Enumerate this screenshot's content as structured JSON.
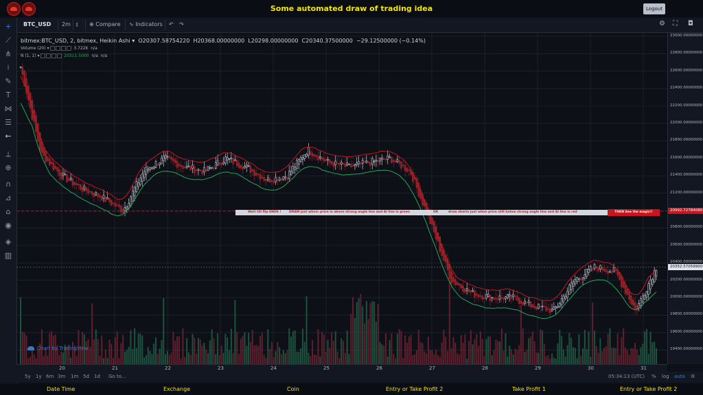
{
  "app_title": "Some automated draw of trading idea",
  "logout_label": "Logout",
  "toolbar": {
    "symbol": "BTC_USD",
    "interval": "2m",
    "compare_label": "Compare",
    "indicators_label": "Indicators"
  },
  "legend": {
    "main": "bitmex:BTC_USD, 2, bitmex, Heikin Ashi",
    "open": "O20307.58754220",
    "high": "H20368.00000000",
    "low": "L20298.00000000",
    "close": "C20340.37500000",
    "change": "−29.12500000 (−0.14%)",
    "volume_label": "Volume (20)",
    "volume_value": "3.722K",
    "volume_na": "n/a",
    "indicator_label": "N (1, 1)",
    "indicator_value": "20311.5000",
    "indicator_na1": "n/a",
    "indicator_na2": "n/a"
  },
  "price_axis": {
    "ticks": [
      "23000.00000000",
      "22800.00000000",
      "22600.00000000",
      "22400.00000000",
      "22200.00000000",
      "22000.00000000",
      "21800.00000000",
      "21600.00000000",
      "21400.00000000",
      "21200.00000000",
      "21000.00000000",
      "20800.00000000",
      "20600.00000000",
      "20400.00000000",
      "20200.00000000",
      "20000.00000000",
      "19800.00000000",
      "19600.00000000",
      "19400.00000000"
    ],
    "line_label": "20992.72784080",
    "current_label": "20352.57059900"
  },
  "time_axis": {
    "ticks": [
      "20",
      "21",
      "22",
      "23",
      "24",
      "25",
      "26",
      "27",
      "28",
      "29",
      "30",
      "31"
    ]
  },
  "bottom_bar": {
    "ranges": [
      "5y",
      "1y",
      "6m",
      "3m",
      "1m",
      "5d",
      "1d"
    ],
    "goto": "Go to...",
    "time": "05:34:13 (UTC)",
    "percent": "%",
    "log": "log",
    "auto": "auto"
  },
  "banner": {
    "part1": "Wait till flip ENDS  !",
    "part2": "DRAW just when:  price is above strong angle line and AI line is green",
    "part3": "OK",
    "part4": "draw shorts just when price still below strong angle line and AI line is red",
    "magic": "THEN See the magic!!"
  },
  "watermark": "Chart by TradingView",
  "footer": [
    "Date Time",
    "Exchange",
    "Coin",
    "Entry or Take Profit 2",
    "Take Profit 1",
    "Entry or Take Profit 2"
  ],
  "colors": {
    "accent": "#f5e600",
    "up": "#26a65b",
    "down": "#c8161e",
    "background": "#0e1018"
  },
  "chart_data": {
    "type": "candlestick",
    "chart_style": "Heikin Ashi",
    "ylim": [
      19300,
      23000
    ],
    "x": [
      "20",
      "21",
      "22",
      "23",
      "24",
      "25",
      "26",
      "27",
      "28",
      "29",
      "30",
      "31"
    ],
    "close_series": [
      22650,
      21650,
      21400,
      21250,
      21150,
      21000,
      21450,
      21600,
      21500,
      21450,
      21600,
      21500,
      21350,
      21400,
      21700,
      21550,
      21500,
      21550,
      21600,
      21450,
      20850,
      20200,
      20050,
      20000,
      20000,
      19900,
      19850,
      20200,
      20350,
      20300,
      19850,
      20350
    ],
    "horizontal_line": 20992.7278408,
    "last_price": 20352.570599
  }
}
